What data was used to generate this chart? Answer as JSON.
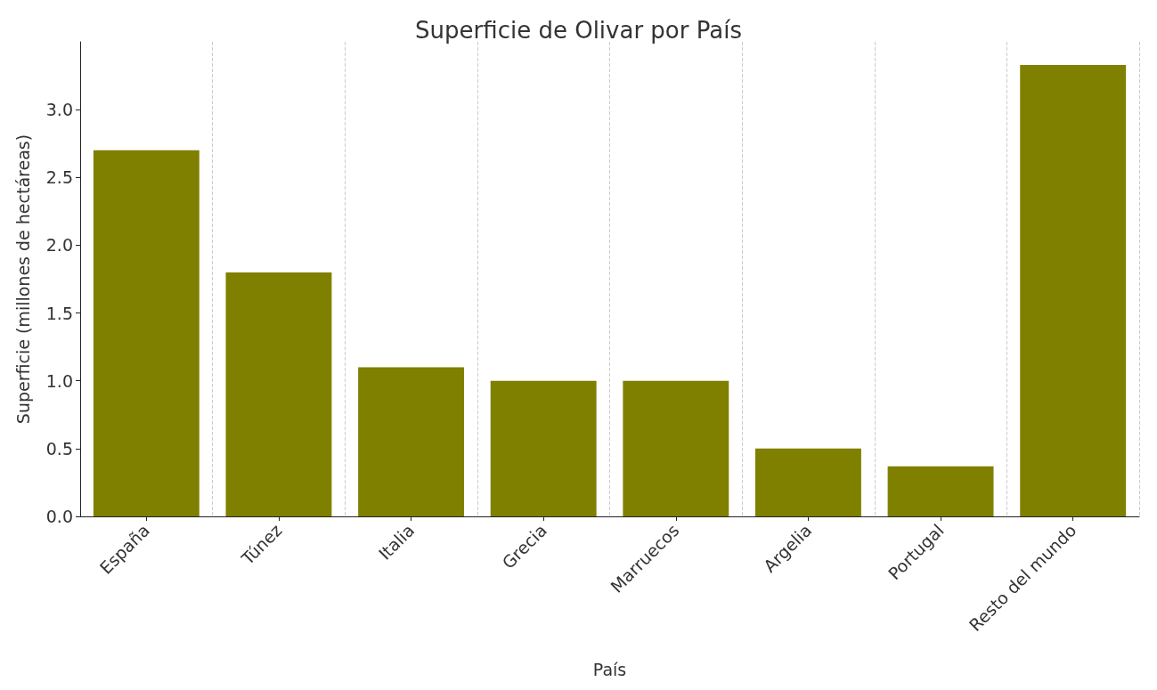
{
  "chart_data": {
    "type": "bar",
    "title": "Superficie de Olivar por País",
    "xlabel": "País",
    "ylabel": "Superficie (millones de hectáreas)",
    "categories": [
      "España",
      "Túnez",
      "Italia",
      "Grecia",
      "Marruecos",
      "Argelia",
      "Portugal",
      "Resto del mundo"
    ],
    "values": [
      2.7,
      1.8,
      1.1,
      1.0,
      1.0,
      0.5,
      0.37,
      3.33
    ],
    "color": "#808000",
    "ylim": [
      0,
      3.5
    ],
    "yticks": [
      {
        "value": 0,
        "label": "0.0"
      },
      {
        "value": 0.5,
        "label": "0.5"
      },
      {
        "value": 1,
        "label": "1.0"
      },
      {
        "value": 1.5,
        "label": "1.5"
      },
      {
        "value": 2,
        "label": "2.0"
      },
      {
        "value": 2.5,
        "label": "2.5"
      },
      {
        "value": 3,
        "label": "3.0"
      }
    ],
    "grid": "x"
  }
}
